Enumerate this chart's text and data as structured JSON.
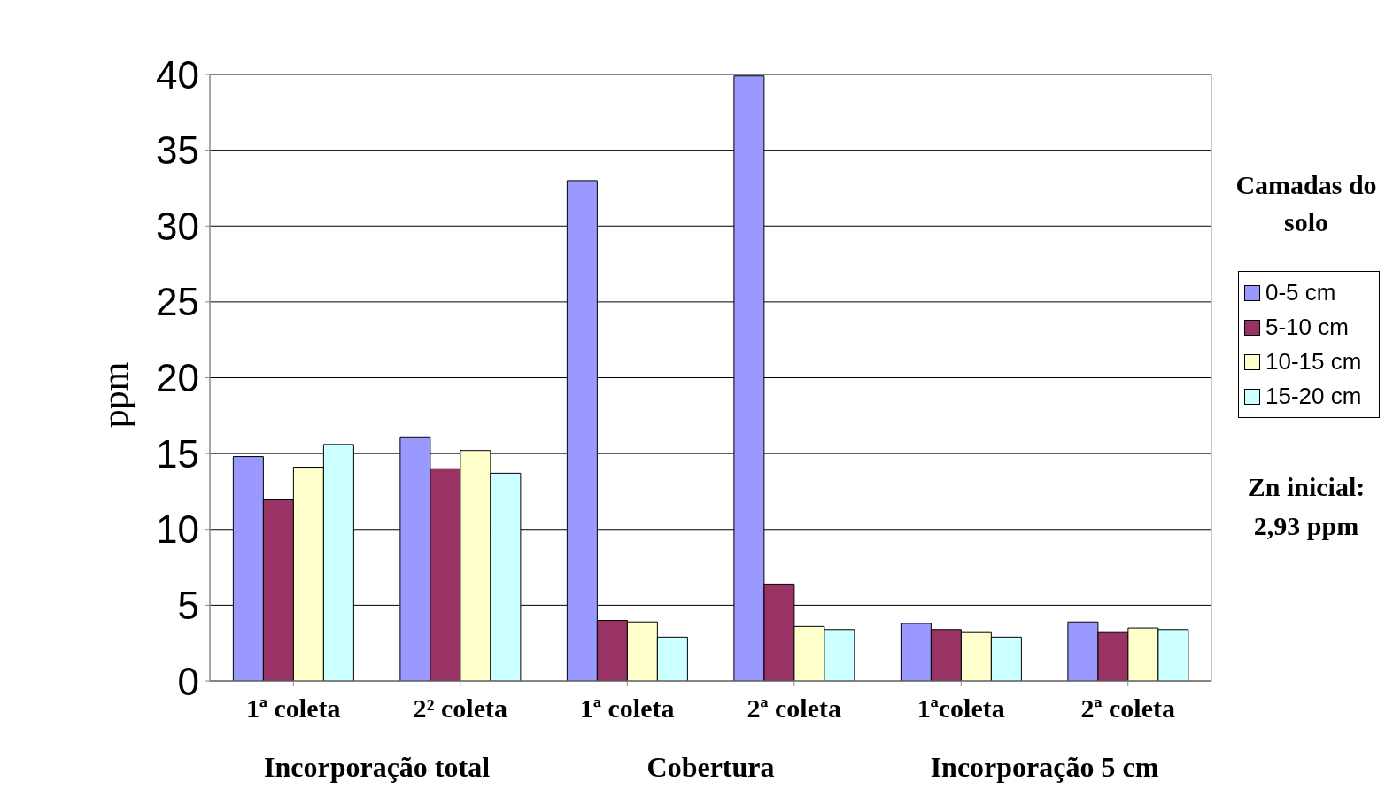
{
  "chart_data": {
    "type": "bar",
    "ylabel": "ppm",
    "legend_title": "Camadas do solo",
    "categories": [
      "1ª coleta",
      "2² coleta",
      "1ª coleta",
      "2ª coleta",
      "1ªcoleta",
      "2ª coleta"
    ],
    "series": [
      {
        "name": "0-5 cm",
        "color": "#9999ff",
        "values": [
          14.8,
          16.1,
          33.0,
          39.9,
          3.8,
          3.9
        ]
      },
      {
        "name": "5-10 cm",
        "color": "#993366",
        "values": [
          12.0,
          14.0,
          4.0,
          6.4,
          3.4,
          3.2
        ]
      },
      {
        "name": "10-15 cm",
        "color": "#ffffcc",
        "values": [
          14.1,
          15.2,
          3.9,
          3.6,
          3.2,
          3.5
        ]
      },
      {
        "name": "15-20 cm",
        "color": "#ccffff",
        "values": [
          15.6,
          13.7,
          2.9,
          3.4,
          2.9,
          3.4
        ]
      }
    ],
    "ylim": [
      0,
      40
    ],
    "yticks": [
      0,
      5,
      10,
      15,
      20,
      25,
      30,
      35,
      40
    ],
    "grid": "y",
    "legend": "right",
    "annotations": [
      "Incorporação total",
      "Cobertura",
      "Incorporação 5 cm",
      "Zn inicial: 2,93 ppm"
    ]
  }
}
